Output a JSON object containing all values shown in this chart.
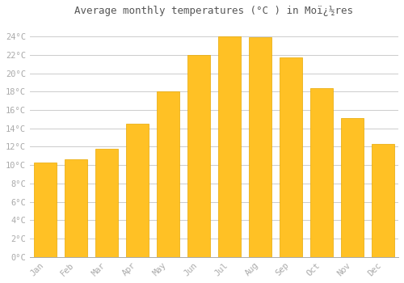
{
  "title": "Average monthly temperatures (°C ) in Moï¿½res",
  "months": [
    "Jan",
    "Feb",
    "Mar",
    "Apr",
    "May",
    "Jun",
    "Jul",
    "Aug",
    "Sep",
    "Oct",
    "Nov",
    "Dec"
  ],
  "values": [
    10.3,
    10.6,
    11.8,
    14.5,
    18.0,
    22.0,
    24.0,
    23.9,
    21.7,
    18.4,
    15.1,
    12.3
  ],
  "bar_color": "#FFC125",
  "bar_edge_color": "#E8A800",
  "background_color": "#FFFFFF",
  "grid_color": "#CCCCCC",
  "tick_label_color": "#AAAAAA",
  "title_color": "#555555",
  "ylim": [
    0,
    25.5
  ],
  "yticks": [
    0,
    2,
    4,
    6,
    8,
    10,
    12,
    14,
    16,
    18,
    20,
    22,
    24
  ],
  "ylabel_suffix": "°C",
  "figsize": [
    5.0,
    3.5
  ],
  "dpi": 100
}
